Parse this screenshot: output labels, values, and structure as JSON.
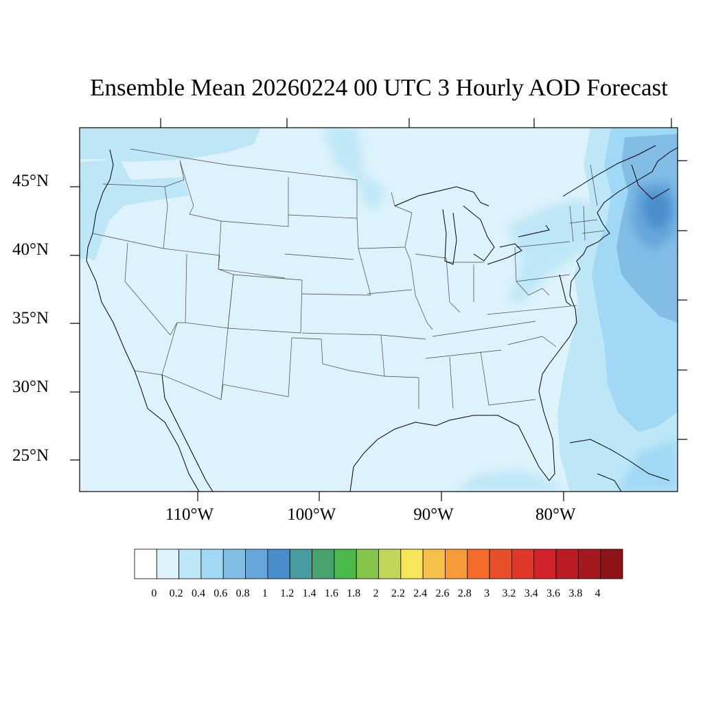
{
  "title": "Ensemble Mean 20260224 00 UTC 3 Hourly AOD Forecast",
  "map": {
    "projection": "cylindrical-equidistant",
    "lon_range": [
      -119,
      -70
    ],
    "lat_range": [
      22.5,
      49
    ],
    "lat_ticks": [
      {
        "value": 45,
        "label": "45°N"
      },
      {
        "value": 40,
        "label": "40°N"
      },
      {
        "value": 35,
        "label": "35°N"
      },
      {
        "value": 30,
        "label": "30°N"
      },
      {
        "value": 25,
        "label": "25°N"
      }
    ],
    "lon_ticks": [
      {
        "value": -110,
        "label": "110°W"
      },
      {
        "value": -100,
        "label": "100°W"
      },
      {
        "value": -90,
        "label": "90°W"
      },
      {
        "value": -80,
        "label": "80°W"
      }
    ],
    "base_fill": "#ddf2fb",
    "coast_color": "#000000",
    "state_border_color": "#444444"
  },
  "colorbar": {
    "levels": [
      "0",
      "0.2",
      "0.4",
      "0.6",
      "0.8",
      "1",
      "1.2",
      "1.4",
      "1.6",
      "1.8",
      "2",
      "2.2",
      "2.4",
      "2.6",
      "2.8",
      "3",
      "3.2",
      "3.4",
      "3.6",
      "3.8",
      "4"
    ],
    "colors": [
      "#ffffff",
      "#ddf2fb",
      "#bde7f7",
      "#a0d8f5",
      "#82bde6",
      "#66a6db",
      "#4a8dcb",
      "#489b9f",
      "#47a26f",
      "#4bb84a",
      "#86c54b",
      "#c3d659",
      "#f8e65a",
      "#f7c04b",
      "#f79a3a",
      "#f56b2b",
      "#e8502b",
      "#df3827",
      "#d3232a",
      "#b91d23",
      "#a5181e",
      "#8e1418"
    ]
  }
}
